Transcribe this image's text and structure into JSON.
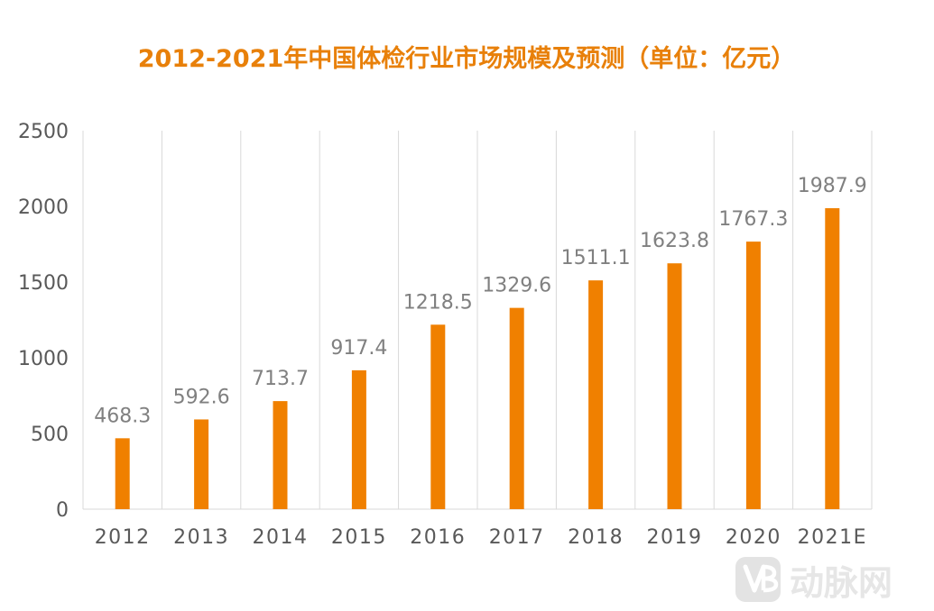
{
  "chart_data": {
    "type": "bar",
    "title": "2012-2021年中国体检行业市场规模及预测（单位：亿元）",
    "xlabel": "",
    "ylabel": "",
    "categories": [
      "2012",
      "2013",
      "2014",
      "2015",
      "2016",
      "2017",
      "2018",
      "2019",
      "2020",
      "2021E"
    ],
    "values": [
      468.3,
      592.6,
      713.7,
      917.4,
      1218.5,
      1329.6,
      1511.1,
      1623.8,
      1767.3,
      1987.9
    ],
    "value_labels": [
      "468.3",
      "592.6",
      "713.7",
      "917.4",
      "1218.5",
      "1329.6",
      "1511.1",
      "1623.8",
      "1767.3",
      "1987.9"
    ],
    "ylim": [
      0,
      2500
    ],
    "yticks": [
      "0",
      "500",
      "1000",
      "1500",
      "2000",
      "2500"
    ],
    "grid": "vertical",
    "legend": "none",
    "colors": {
      "bar": "#f08000",
      "title": "#e8800a",
      "grid": "#d9d9d9",
      "tick_text": "#595959",
      "data_label": "#808080"
    }
  },
  "watermark": {
    "icon": "vb-logo-icon",
    "text": "动脉网"
  }
}
